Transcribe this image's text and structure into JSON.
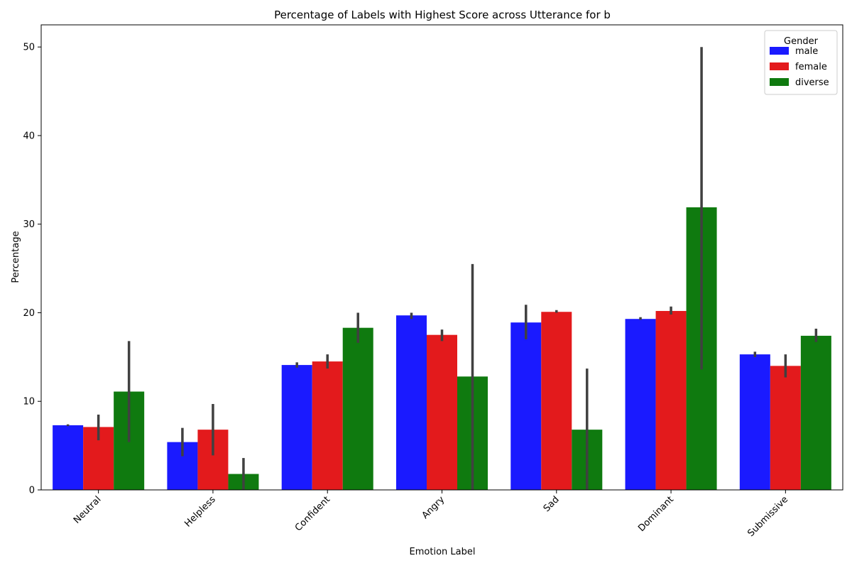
{
  "chart_data": {
    "type": "bar",
    "title": "Percentage of Labels with Highest Score across Utterance for b",
    "xlabel": "Emotion Label",
    "ylabel": "Percentage",
    "ylim": [
      0,
      52.5
    ],
    "yticks": [
      0,
      10,
      20,
      30,
      40,
      50
    ],
    "grid": false,
    "legend": {
      "title": "Gender",
      "placement": "top-right"
    },
    "categories": [
      "Neutral",
      "Helpless",
      "Confident",
      "Angry",
      "Sad",
      "Dominant",
      "Submissive"
    ],
    "series": [
      {
        "name": "male",
        "color": "#1a1aff",
        "values": [
          7.3,
          5.4,
          14.1,
          19.7,
          18.9,
          19.3,
          15.3
        ],
        "ci_low": [
          7.2,
          3.8,
          13.8,
          19.3,
          17.0,
          19.2,
          15.0
        ],
        "ci_high": [
          7.4,
          7.0,
          14.4,
          20.0,
          20.9,
          19.5,
          15.6
        ]
      },
      {
        "name": "female",
        "color": "#e31a1c",
        "values": [
          7.1,
          6.8,
          14.5,
          17.5,
          20.1,
          20.2,
          14.0
        ],
        "ci_low": [
          5.6,
          3.9,
          13.7,
          16.8,
          20.0,
          19.8,
          12.7
        ],
        "ci_high": [
          8.5,
          9.7,
          15.3,
          18.1,
          20.3,
          20.7,
          15.3
        ]
      },
      {
        "name": "diverse",
        "color": "#0f7a0f",
        "values": [
          11.1,
          1.8,
          18.3,
          12.8,
          6.8,
          31.9,
          17.4
        ],
        "ci_low": [
          5.4,
          0.0,
          16.6,
          0.0,
          0.0,
          13.6,
          16.7
        ],
        "ci_high": [
          16.8,
          3.6,
          20.0,
          25.5,
          13.7,
          50.0,
          18.2
        ]
      }
    ]
  }
}
